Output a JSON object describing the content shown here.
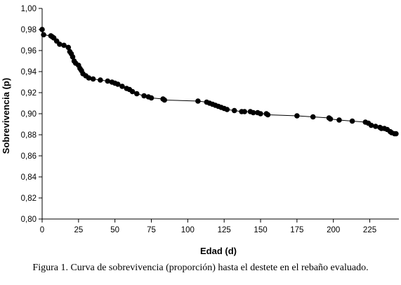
{
  "chart_data": {
    "type": "line",
    "title": "",
    "xlabel": "Edad (d)",
    "ylabel": "Sobrevivencia (p)",
    "xlim": [
      0,
      245
    ],
    "ylim": [
      0.8,
      1.0
    ],
    "x_ticks": [
      0,
      25,
      50,
      75,
      100,
      125,
      150,
      175,
      200,
      225
    ],
    "x_tick_labels": [
      "0",
      "25",
      "50",
      "75",
      "100",
      "125",
      "150",
      "175",
      "200",
      "225"
    ],
    "y_ticks": [
      0.8,
      0.82,
      0.84,
      0.86,
      0.88,
      0.9,
      0.92,
      0.94,
      0.96,
      0.98,
      1.0
    ],
    "y_tick_labels": [
      "0,80",
      "0,82",
      "0,84",
      "0,86",
      "0,88",
      "0,90",
      "0,92",
      "0,94",
      "0,96",
      "0,98",
      "1,00"
    ],
    "grid": false,
    "legend": "none",
    "series": [
      {
        "color": "#000000",
        "marker": "circle",
        "x": [
          0,
          1,
          6,
          7,
          8,
          10,
          12,
          15,
          18,
          19,
          20,
          21,
          22,
          23,
          25,
          26,
          27,
          28,
          30,
          32,
          35,
          40,
          45,
          48,
          50,
          52,
          55,
          58,
          60,
          62,
          65,
          70,
          73,
          75,
          83,
          84,
          107,
          113,
          115,
          117,
          119,
          121,
          123,
          125,
          127,
          132,
          137,
          139,
          143,
          145,
          148,
          150,
          154,
          155,
          175,
          186,
          197,
          198,
          204,
          213,
          222,
          224,
          226,
          229,
          232,
          233,
          235,
          237,
          239,
          240,
          242,
          243
        ],
        "y": [
          0.98,
          0.975,
          0.974,
          0.973,
          0.972,
          0.969,
          0.966,
          0.965,
          0.963,
          0.959,
          0.957,
          0.954,
          0.95,
          0.948,
          0.946,
          0.943,
          0.941,
          0.938,
          0.936,
          0.934,
          0.933,
          0.932,
          0.931,
          0.93,
          0.929,
          0.928,
          0.926,
          0.924,
          0.923,
          0.921,
          0.919,
          0.917,
          0.916,
          0.915,
          0.914,
          0.913,
          0.912,
          0.911,
          0.91,
          0.909,
          0.908,
          0.907,
          0.906,
          0.905,
          0.904,
          0.903,
          0.902,
          0.902,
          0.902,
          0.901,
          0.901,
          0.9,
          0.9,
          0.899,
          0.898,
          0.897,
          0.896,
          0.895,
          0.894,
          0.893,
          0.892,
          0.891,
          0.889,
          0.888,
          0.887,
          0.886,
          0.886,
          0.885,
          0.883,
          0.882,
          0.881,
          0.881
        ]
      }
    ]
  },
  "caption": "Figura 1. Curva de sobrevivencia (proporción) hasta el destete en el rebaño evaluado."
}
